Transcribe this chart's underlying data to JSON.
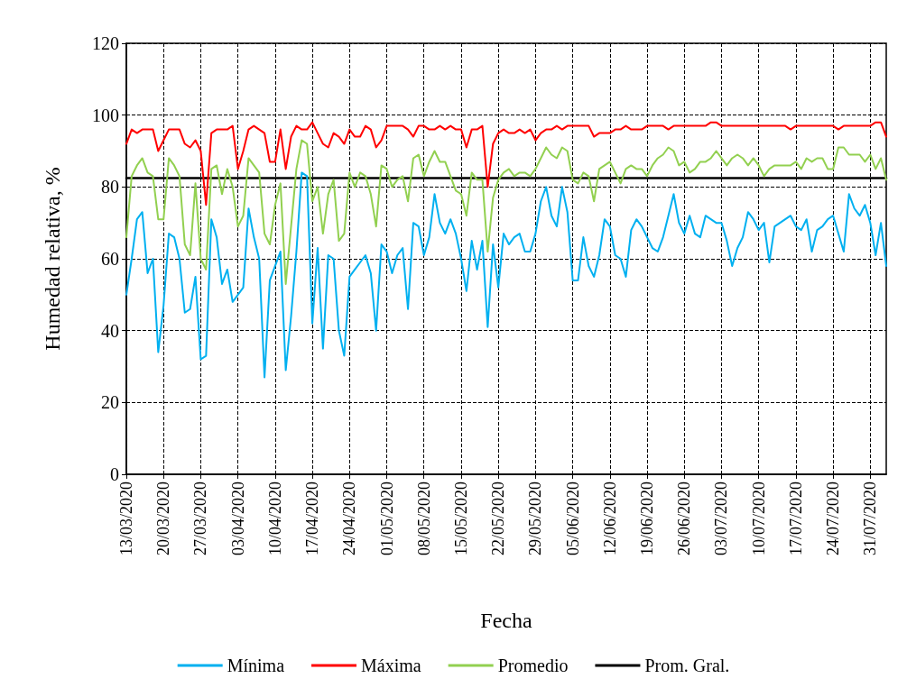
{
  "chart_data": {
    "type": "line",
    "xlabel": "Fecha",
    "ylabel": "Humedad relativa, %",
    "x": [
      "2020-03-13",
      "2020-03-14",
      "2020-03-15",
      "2020-03-16",
      "2020-03-17",
      "2020-03-18",
      "2020-03-19",
      "2020-03-20",
      "2020-03-21",
      "2020-03-22",
      "2020-03-23",
      "2020-03-24",
      "2020-03-25",
      "2020-03-26",
      "2020-03-27",
      "2020-03-28",
      "2020-03-29",
      "2020-03-30",
      "2020-03-31",
      "2020-04-01",
      "2020-04-02",
      "2020-04-03",
      "2020-04-04",
      "2020-04-05",
      "2020-04-06",
      "2020-04-07",
      "2020-04-08",
      "2020-04-09",
      "2020-04-10",
      "2020-04-11",
      "2020-04-12",
      "2020-04-13",
      "2020-04-14",
      "2020-04-15",
      "2020-04-16",
      "2020-04-17",
      "2020-04-18",
      "2020-04-19",
      "2020-04-20",
      "2020-04-21",
      "2020-04-22",
      "2020-04-23",
      "2020-04-24",
      "2020-04-25",
      "2020-04-26",
      "2020-04-27",
      "2020-04-28",
      "2020-04-29",
      "2020-04-30",
      "2020-05-01",
      "2020-05-02",
      "2020-05-03",
      "2020-05-04",
      "2020-05-05",
      "2020-05-06",
      "2020-05-07",
      "2020-05-08",
      "2020-05-09",
      "2020-05-10",
      "2020-05-11",
      "2020-05-12",
      "2020-05-13",
      "2020-05-14",
      "2020-05-15",
      "2020-05-16",
      "2020-05-17",
      "2020-05-18",
      "2020-05-19",
      "2020-05-20",
      "2020-05-21",
      "2020-05-22",
      "2020-05-23",
      "2020-05-24",
      "2020-05-25",
      "2020-05-26",
      "2020-05-27",
      "2020-05-28",
      "2020-05-29",
      "2020-05-30",
      "2020-05-31",
      "2020-06-01",
      "2020-06-02",
      "2020-06-03",
      "2020-06-04",
      "2020-06-05",
      "2020-06-06",
      "2020-06-07",
      "2020-06-08",
      "2020-06-09",
      "2020-06-10",
      "2020-06-11",
      "2020-06-12",
      "2020-06-13",
      "2020-06-14",
      "2020-06-15",
      "2020-06-16",
      "2020-06-17",
      "2020-06-18",
      "2020-06-19",
      "2020-06-20",
      "2020-06-21",
      "2020-06-22",
      "2020-06-23",
      "2020-06-24",
      "2020-06-25",
      "2020-06-26",
      "2020-06-27",
      "2020-06-28",
      "2020-06-29",
      "2020-06-30",
      "2020-07-01",
      "2020-07-02",
      "2020-07-03",
      "2020-07-04",
      "2020-07-05",
      "2020-07-06",
      "2020-07-07",
      "2020-07-08",
      "2020-07-09",
      "2020-07-10",
      "2020-07-11",
      "2020-07-12",
      "2020-07-13",
      "2020-07-14",
      "2020-07-15",
      "2020-07-16",
      "2020-07-17",
      "2020-07-18",
      "2020-07-19",
      "2020-07-20",
      "2020-07-21",
      "2020-07-22",
      "2020-07-23",
      "2020-07-24",
      "2020-07-25",
      "2020-07-26",
      "2020-07-27",
      "2020-07-28",
      "2020-07-29",
      "2020-07-30",
      "2020-07-31",
      "2020-08-01",
      "2020-08-02",
      "2020-08-03"
    ],
    "series": [
      {
        "name": "Mínima",
        "color": "#00b0f0",
        "values": [
          50,
          60,
          71,
          73,
          56,
          60,
          34,
          47,
          67,
          66,
          60,
          45,
          46,
          55,
          32,
          33,
          71,
          66,
          53,
          57,
          48,
          50,
          52,
          74,
          66,
          60,
          27,
          54,
          58,
          62,
          29,
          44,
          62,
          84,
          83,
          42,
          63,
          35,
          61,
          60,
          40,
          33,
          55,
          57,
          59,
          61,
          56,
          40,
          64,
          62,
          56,
          61,
          63,
          46,
          70,
          69,
          61,
          66,
          78,
          70,
          67,
          71,
          67,
          60,
          51,
          65,
          57,
          65,
          41,
          64,
          52,
          67,
          64,
          66,
          67,
          62,
          62,
          67,
          76,
          80,
          72,
          69,
          80,
          73,
          54,
          54,
          66,
          58,
          55,
          61,
          71,
          69,
          61,
          60,
          55,
          68,
          71,
          69,
          66,
          63,
          62,
          66,
          72,
          78,
          70,
          67,
          72,
          67,
          66,
          72,
          71,
          70,
          70,
          65,
          58,
          63,
          66,
          73,
          71,
          68,
          70,
          59,
          69,
          70,
          71,
          72,
          69,
          68,
          71,
          62,
          68,
          69,
          71,
          72,
          67,
          62,
          78,
          74,
          72,
          75,
          70,
          61,
          70,
          58
        ]
      },
      {
        "name": "Máxima",
        "color": "#ff0000",
        "values": [
          92,
          96,
          95,
          96,
          96,
          96,
          90,
          93,
          96,
          96,
          96,
          92,
          91,
          93,
          90,
          75,
          95,
          96,
          96,
          96,
          97,
          85,
          90,
          96,
          97,
          96,
          95,
          87,
          87,
          96,
          85,
          94,
          97,
          96,
          96,
          98,
          95,
          92,
          91,
          95,
          94,
          92,
          96,
          94,
          94,
          97,
          96,
          91,
          93,
          97,
          97,
          97,
          97,
          96,
          94,
          97,
          97,
          96,
          96,
          97,
          96,
          97,
          96,
          96,
          91,
          96,
          96,
          97,
          80,
          92,
          95,
          96,
          95,
          95,
          96,
          95,
          96,
          93,
          95,
          96,
          96,
          97,
          96,
          97,
          97,
          97,
          97,
          97,
          94,
          95,
          95,
          95,
          96,
          96,
          97,
          96,
          96,
          96,
          97,
          97,
          97,
          97,
          96,
          97,
          97,
          97,
          97,
          97,
          97,
          97,
          98,
          98,
          97,
          97,
          97,
          97,
          97,
          97,
          97,
          97,
          97,
          97,
          97,
          97,
          97,
          96,
          97,
          97,
          97,
          97,
          97,
          97,
          97,
          97,
          96,
          97,
          97,
          97,
          97,
          97,
          97,
          98,
          98,
          94
        ]
      },
      {
        "name": "Promedio",
        "color": "#92d050",
        "values": [
          66,
          83,
          86,
          88,
          84,
          83,
          71,
          71,
          88,
          86,
          83,
          64,
          61,
          81,
          60,
          57,
          85,
          86,
          78,
          85,
          80,
          69,
          72,
          88,
          86,
          84,
          67,
          64,
          75,
          81,
          53,
          69,
          85,
          93,
          92,
          76,
          80,
          67,
          78,
          82,
          65,
          67,
          84,
          80,
          84,
          83,
          78,
          69,
          86,
          85,
          80,
          82,
          83,
          76,
          88,
          89,
          83,
          87,
          90,
          87,
          87,
          83,
          79,
          78,
          72,
          84,
          82,
          82,
          62,
          77,
          82,
          84,
          85,
          83,
          84,
          84,
          83,
          85,
          88,
          91,
          89,
          88,
          91,
          90,
          82,
          81,
          84,
          83,
          76,
          85,
          86,
          87,
          84,
          81,
          85,
          86,
          85,
          85,
          83,
          86,
          88,
          89,
          91,
          90,
          86,
          87,
          84,
          85,
          87,
          87,
          88,
          90,
          88,
          86,
          88,
          89,
          88,
          86,
          88,
          86,
          83,
          85,
          86,
          86,
          86,
          86,
          87,
          85,
          88,
          87,
          88,
          88,
          85,
          85,
          91,
          91,
          89,
          89,
          89,
          87,
          89,
          85,
          88,
          82
        ]
      },
      {
        "name": "Prom. Gral.",
        "color": "#000000",
        "x": [
          "2020-03-13",
          "2020-08-03"
        ],
        "values": [
          82.5,
          82.5
        ]
      }
    ],
    "xlim": [
      "2020-03-13",
      "2020-08-03"
    ],
    "xticks": [
      {
        "value": "2020-03-13",
        "label": "13/03/2020"
      },
      {
        "value": "2020-03-20",
        "label": "20/03/2020"
      },
      {
        "value": "2020-03-27",
        "label": "27/03/2020"
      },
      {
        "value": "2020-04-03",
        "label": "03/04/2020"
      },
      {
        "value": "2020-04-10",
        "label": "10/04/2020"
      },
      {
        "value": "2020-04-17",
        "label": "17/04/2020"
      },
      {
        "value": "2020-04-24",
        "label": "24/04/2020"
      },
      {
        "value": "2020-05-01",
        "label": "01/05/2020"
      },
      {
        "value": "2020-05-08",
        "label": "08/05/2020"
      },
      {
        "value": "2020-05-15",
        "label": "15/05/2020"
      },
      {
        "value": "2020-05-22",
        "label": "22/05/2020"
      },
      {
        "value": "2020-05-29",
        "label": "29/05/2020"
      },
      {
        "value": "2020-06-05",
        "label": "05/06/2020"
      },
      {
        "value": "2020-06-12",
        "label": "12/06/2020"
      },
      {
        "value": "2020-06-19",
        "label": "19/06/2020"
      },
      {
        "value": "2020-06-26",
        "label": "26/06/2020"
      },
      {
        "value": "2020-07-03",
        "label": "03/07/2020"
      },
      {
        "value": "2020-07-10",
        "label": "10/07/2020"
      },
      {
        "value": "2020-07-17",
        "label": "17/07/2020"
      },
      {
        "value": "2020-07-24",
        "label": "24/07/2020"
      },
      {
        "value": "2020-07-31",
        "label": "31/07/2020"
      }
    ],
    "ylim": [
      0,
      120
    ],
    "yticks": [
      0,
      20,
      40,
      60,
      80,
      100,
      120
    ],
    "grid": true,
    "legend": "bottom",
    "marker": "none",
    "line_style": "solid"
  }
}
